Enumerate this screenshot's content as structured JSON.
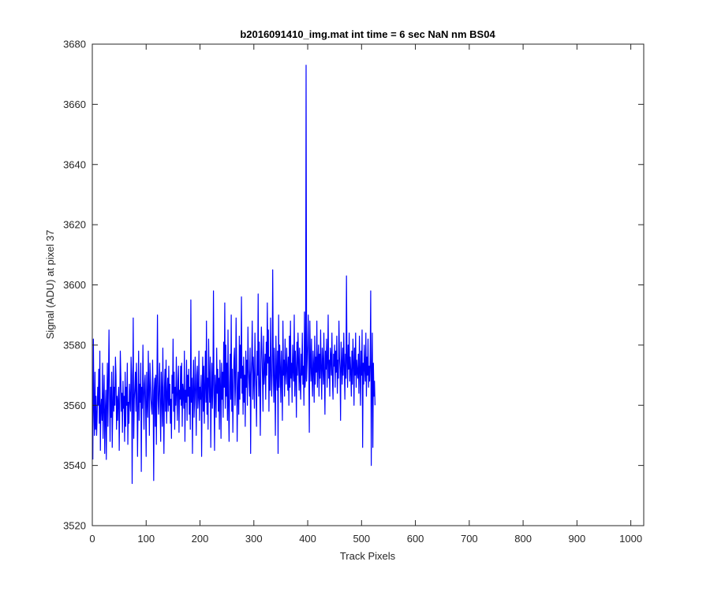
{
  "chart_data": {
    "type": "line",
    "title": "b2016091410_img.mat int time = 6 sec  NaN nm BS04",
    "xlabel": "Track Pixels",
    "ylabel": "Signal (ADU) at pixel 37",
    "xlim": [
      0,
      1024
    ],
    "ylim": [
      3520,
      3680
    ],
    "xticks": [
      0,
      100,
      200,
      300,
      400,
      500,
      600,
      700,
      800,
      900,
      1000
    ],
    "yticks": [
      3520,
      3540,
      3560,
      3580,
      3600,
      3620,
      3640,
      3660,
      3680
    ],
    "grid": false,
    "legend": "none",
    "series_color": "#0000ff",
    "series": [
      {
        "x_start": 1,
        "x_step": 1,
        "values": [
          3542,
          3582,
          3560,
          3550,
          3571,
          3552,
          3563,
          3550,
          3556,
          3566,
          3560,
          3572,
          3554,
          3578,
          3545,
          3559,
          3562,
          3555,
          3574,
          3549,
          3561,
          3570,
          3544,
          3557,
          3565,
          3542,
          3560,
          3574,
          3553,
          3568,
          3585,
          3563,
          3548,
          3566,
          3556,
          3571,
          3546,
          3559,
          3573,
          3558,
          3566,
          3560,
          3576,
          3570,
          3552,
          3563,
          3555,
          3562,
          3566,
          3545,
          3560,
          3578,
          3569,
          3558,
          3564,
          3551,
          3568,
          3559,
          3563,
          3548,
          3571,
          3553,
          3566,
          3560,
          3574,
          3547,
          3561,
          3554,
          3567,
          3562,
          3558,
          3576,
          3570,
          3534,
          3563,
          3589,
          3549,
          3562,
          3566,
          3571,
          3558,
          3574,
          3564,
          3543,
          3560,
          3578,
          3555,
          3567,
          3561,
          3574,
          3538,
          3566,
          3559,
          3580,
          3564,
          3552,
          3567,
          3570,
          3560,
          3543,
          3571,
          3562,
          3556,
          3578,
          3565,
          3550,
          3574,
          3568,
          3562,
          3559,
          3557,
          3575,
          3563,
          3535,
          3565,
          3569,
          3553,
          3570,
          3547,
          3568,
          3590,
          3562,
          3557,
          3566,
          3574,
          3559,
          3548,
          3571,
          3564,
          3553,
          3579,
          3560,
          3544,
          3566,
          3572,
          3558,
          3575,
          3554,
          3563,
          3569,
          3558,
          3573,
          3560,
          3567,
          3554,
          3562,
          3549,
          3570,
          3564,
          3582,
          3558,
          3571,
          3552,
          3566,
          3560,
          3576,
          3563,
          3555,
          3568,
          3573,
          3551,
          3565,
          3562,
          3573,
          3560,
          3574,
          3553,
          3567,
          3564,
          3559,
          3578,
          3548,
          3565,
          3561,
          3575,
          3555,
          3570,
          3563,
          3572,
          3557,
          3566,
          3552,
          3595,
          3561,
          3569,
          3544,
          3566,
          3575,
          3556,
          3562,
          3576,
          3565,
          3550,
          3570,
          3573,
          3559,
          3563,
          3578,
          3555,
          3566,
          3562,
          3570,
          3543,
          3564,
          3576,
          3558,
          3573,
          3554,
          3566,
          3578,
          3561,
          3588,
          3557,
          3569,
          3552,
          3582,
          3568,
          3561,
          3576,
          3546,
          3564,
          3574,
          3559,
          3567,
          3598,
          3563,
          3545,
          3570,
          3565,
          3556,
          3579,
          3564,
          3572,
          3558,
          3569,
          3552,
          3575,
          3566,
          3549,
          3574,
          3562,
          3571,
          3556,
          3581,
          3566,
          3594,
          3559,
          3580,
          3563,
          3574,
          3555,
          3585,
          3560,
          3548,
          3567,
          3577,
          3562,
          3590,
          3558,
          3572,
          3551,
          3566,
          3575,
          3579,
          3560,
          3567,
          3589,
          3574,
          3548,
          3565,
          3571,
          3557,
          3583,
          3562,
          3580,
          3569,
          3596,
          3564,
          3573,
          3557,
          3576,
          3561,
          3570,
          3553,
          3578,
          3566,
          3575,
          3560,
          3586,
          3572,
          3568,
          3563,
          3579,
          3544,
          3570,
          3575,
          3588,
          3562,
          3576,
          3568,
          3559,
          3584,
          3571,
          3566,
          3553,
          3578,
          3570,
          3597,
          3563,
          3581,
          3567,
          3550,
          3574,
          3586,
          3578,
          3569,
          3558,
          3583,
          3567,
          3572,
          3577,
          3562,
          3581,
          3570,
          3594,
          3574,
          3585,
          3558,
          3576,
          3565,
          3589,
          3572,
          3563,
          3570,
          3605,
          3575,
          3561,
          3579,
          3568,
          3550,
          3583,
          3571,
          3565,
          3578,
          3544,
          3590,
          3566,
          3580,
          3572,
          3561,
          3578,
          3569,
          3555,
          3588,
          3570,
          3575,
          3563,
          3582,
          3571,
          3567,
          3579,
          3572,
          3565,
          3576,
          3560,
          3583,
          3566,
          3588,
          3569,
          3574,
          3561,
          3580,
          3572,
          3568,
          3590,
          3563,
          3578,
          3571,
          3556,
          3581,
          3570,
          3584,
          3575,
          3565,
          3579,
          3568,
          3562,
          3577,
          3570,
          3584,
          3567,
          3573,
          3560,
          3591,
          3566,
          3569,
          3673,
          3568,
          3574,
          3580,
          3590,
          3572,
          3551,
          3588,
          3575,
          3568,
          3582,
          3570,
          3563,
          3578,
          3573,
          3561,
          3583,
          3567,
          3576,
          3571,
          3588,
          3566,
          3574,
          3580,
          3563,
          3577,
          3569,
          3585,
          3572,
          3562,
          3579,
          3574,
          3567,
          3584,
          3570,
          3557,
          3578,
          3572,
          3582,
          3566,
          3574,
          3590,
          3569,
          3575,
          3563,
          3579,
          3576,
          3570,
          3584,
          3568,
          3562,
          3577,
          3573,
          3580,
          3566,
          3578,
          3571,
          3583,
          3564,
          3575,
          3569,
          3588,
          3576,
          3572,
          3555,
          3581,
          3574,
          3567,
          3579,
          3570,
          3584,
          3573,
          3562,
          3577,
          3569,
          3603,
          3574,
          3566,
          3580,
          3572,
          3584,
          3568,
          3576,
          3571,
          3563,
          3578,
          3567,
          3582,
          3574,
          3560,
          3579,
          3570,
          3584,
          3566,
          3575,
          3571,
          3569,
          3577,
          3564,
          3583,
          3572,
          3560,
          3578,
          3570,
          3585,
          3546,
          3574,
          3567,
          3580,
          3572,
          3568,
          3584,
          3563,
          3576,
          3570,
          3582,
          3566,
          3573,
          3568,
          3575,
          3598,
          3540,
          3570,
          3584,
          3546,
          3574,
          3563,
          3568,
          3560
        ]
      }
    ]
  }
}
